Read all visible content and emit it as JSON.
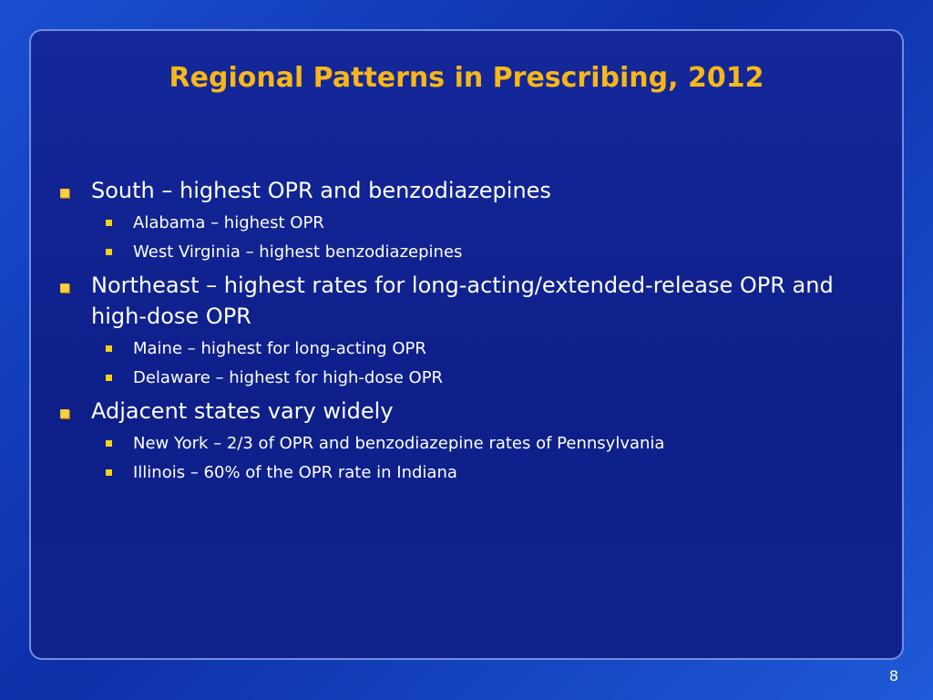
{
  "title": "Regional Patterns in Prescribing, 2012",
  "bullets": [
    {
      "text": "South – highest OPR and benzodiazepines",
      "sub": [
        "Alabama – highest OPR",
        "West Virginia – highest benzodiazepines"
      ]
    },
    {
      "text": "Northeast – highest rates for long-acting/extended-release OPR and high-dose OPR",
      "sub": [
        "Maine – highest for long-acting OPR",
        "Delaware – highest for high-dose OPR"
      ]
    },
    {
      "text": "Adjacent states vary widely",
      "sub": [
        "New York – 2/3 of OPR and benzodiazepine rates of Pennsylvania",
        "Illinois – 60% of the OPR rate in Indiana"
      ]
    }
  ],
  "page_number": "8"
}
